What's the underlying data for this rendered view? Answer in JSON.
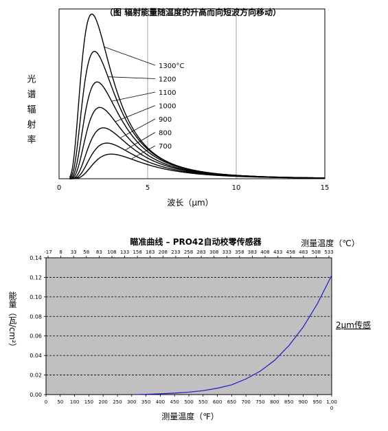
{
  "chart_data": [
    {
      "type": "line",
      "title": "（图  辐射能量随温度的升高而向短波方向移动）",
      "xlabel": "波长（μm）",
      "ylabel": "光谱辐射率",
      "xlim": [
        0,
        15
      ],
      "ylim": [
        0,
        1
      ],
      "x_ticks": [
        "0",
        "5",
        "10",
        "15"
      ],
      "grid": "vertical",
      "series": [
        {
          "name": "700",
          "peak_x": 2.95,
          "peak_y": 0.145
        },
        {
          "name": "800",
          "peak_x": 2.7,
          "peak_y": 0.21
        },
        {
          "name": "900",
          "peak_x": 2.5,
          "peak_y": 0.3
        },
        {
          "name": "1000",
          "peak_x": 2.3,
          "peak_y": 0.42
        },
        {
          "name": "1100",
          "peak_x": 2.15,
          "peak_y": 0.57
        },
        {
          "name": "1200",
          "peak_x": 2.0,
          "peak_y": 0.75
        },
        {
          "name": "1300°C",
          "peak_x": 1.85,
          "peak_y": 0.97
        }
      ]
    },
    {
      "type": "line",
      "title": "瞄准曲线  –  PRO42自动校零传感器",
      "xlabel": "测量温度（℉）",
      "ylabel": "能量（瓦/cm²）",
      "x2label": "测量温度（℃）",
      "xlim": [
        0,
        1000
      ],
      "ylim": [
        0,
        0.14
      ],
      "x_ticks": [
        "0",
        "50",
        "100",
        "150",
        "200",
        "250",
        "300",
        "350",
        "400",
        "450",
        "500",
        "550",
        "600",
        "650",
        "700",
        "750",
        "800",
        "850",
        "900",
        "950",
        "1,00"
      ],
      "x_tick_extra": "0",
      "x2_ticks": [
        "-17",
        "8",
        "33",
        "58",
        "83",
        "108",
        "133",
        "158",
        "183",
        "208",
        "233",
        "258",
        "283",
        "308",
        "333",
        "358",
        "383",
        "408",
        "433",
        "458",
        "483",
        "508",
        "533"
      ],
      "y_ticks": [
        "0.00",
        "0.02",
        "0.04",
        "0.06",
        "0.08",
        "0.10",
        "0.12",
        "0.14"
      ],
      "grid": "horizontal dashed",
      "annotation": "2μm传感",
      "colors": {
        "plot_bg": "#c0c0c0",
        "line": "#1a1acc"
      },
      "series": [
        {
          "x": [
            310,
            350,
            400,
            450,
            500,
            550,
            600,
            650,
            700,
            750,
            800,
            850,
            900,
            950,
            1000
          ],
          "y": [
            0.0,
            0.0003,
            0.0008,
            0.0015,
            0.0025,
            0.004,
            0.0065,
            0.01,
            0.016,
            0.024,
            0.035,
            0.05,
            0.069,
            0.093,
            0.122
          ]
        }
      ]
    }
  ]
}
